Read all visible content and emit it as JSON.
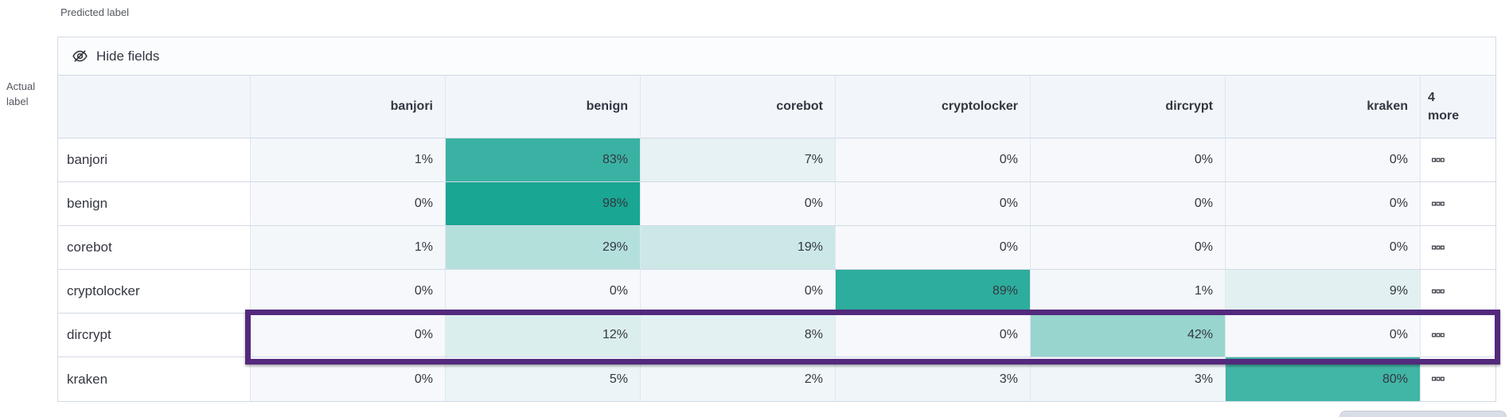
{
  "toolbar": {
    "hide_fields_label": "Hide fields"
  },
  "grid": {
    "more_column_header_lines": [
      "4",
      "more"
    ],
    "row_action_icon": "boxes-horizontal-icon",
    "hide_fields_icon": "eye-closed-icon"
  },
  "highlight": {
    "highlighted_row": "dircrypt"
  },
  "chart_data": {
    "type": "heatmap",
    "xlabel": "Predicted label",
    "ylabel": "Actual label",
    "columns": [
      "banjori",
      "benign",
      "corebot",
      "cryptolocker",
      "dircrypt",
      "kraken"
    ],
    "extra_columns_label": "4 more",
    "rows": [
      "banjori",
      "benign",
      "corebot",
      "cryptolocker",
      "dircrypt",
      "kraken"
    ],
    "values_percent": [
      [
        1,
        83,
        7,
        0,
        0,
        0
      ],
      [
        0,
        98,
        0,
        0,
        0,
        0
      ],
      [
        1,
        29,
        19,
        0,
        0,
        0
      ],
      [
        0,
        0,
        0,
        89,
        1,
        9
      ],
      [
        0,
        12,
        8,
        0,
        42,
        0
      ],
      [
        0,
        5,
        2,
        3,
        3,
        80
      ]
    ],
    "value_suffix": "%",
    "value_range": [
      0,
      100
    ],
    "legend": "none"
  },
  "colors": {
    "heat_base": "#14A491",
    "cell_zero_bg": "#F6F8FB",
    "header_bg": "#F2F5FA",
    "toolbar_bg": "#FBFCFD",
    "border": "#D3DAE6",
    "inner_border": "#E0E6F0",
    "text": "#343741",
    "axis_text": "#53575F",
    "highlight": "#53297D",
    "scrollbar_bg": "#D9DEE6",
    "scrollbar_border": "#C6CCD7"
  }
}
